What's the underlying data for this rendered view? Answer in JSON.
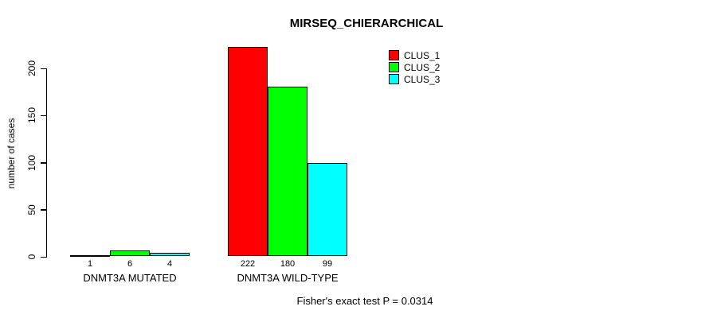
{
  "chart_data": {
    "type": "bar",
    "subtype": "grouped_bar",
    "title": "MIRSEQ_CHIERARCHICAL",
    "xlabel": "",
    "ylabel": "number of cases",
    "categories": [
      "DNMT3A MUTATED",
      "DNMT3A WILD-TYPE"
    ],
    "series": [
      {
        "name": "CLUS_1",
        "color": "#ff0000",
        "values": [
          1,
          222
        ]
      },
      {
        "name": "CLUS_2",
        "color": "#00ff00",
        "values": [
          6,
          180
        ]
      },
      {
        "name": "CLUS_3",
        "color": "#00ffff",
        "values": [
          4,
          99
        ]
      }
    ],
    "bar_value_labels": [
      [
        "1",
        "6",
        "4"
      ],
      [
        "222",
        "180",
        "99"
      ]
    ],
    "yticks": [
      0,
      50,
      100,
      150,
      200
    ],
    "ylim": [
      0,
      230
    ],
    "grid": false,
    "legend_position": "top-right",
    "bar_border_color": "#000000",
    "annotation": "Fisher's exact test P = 0.0314"
  }
}
